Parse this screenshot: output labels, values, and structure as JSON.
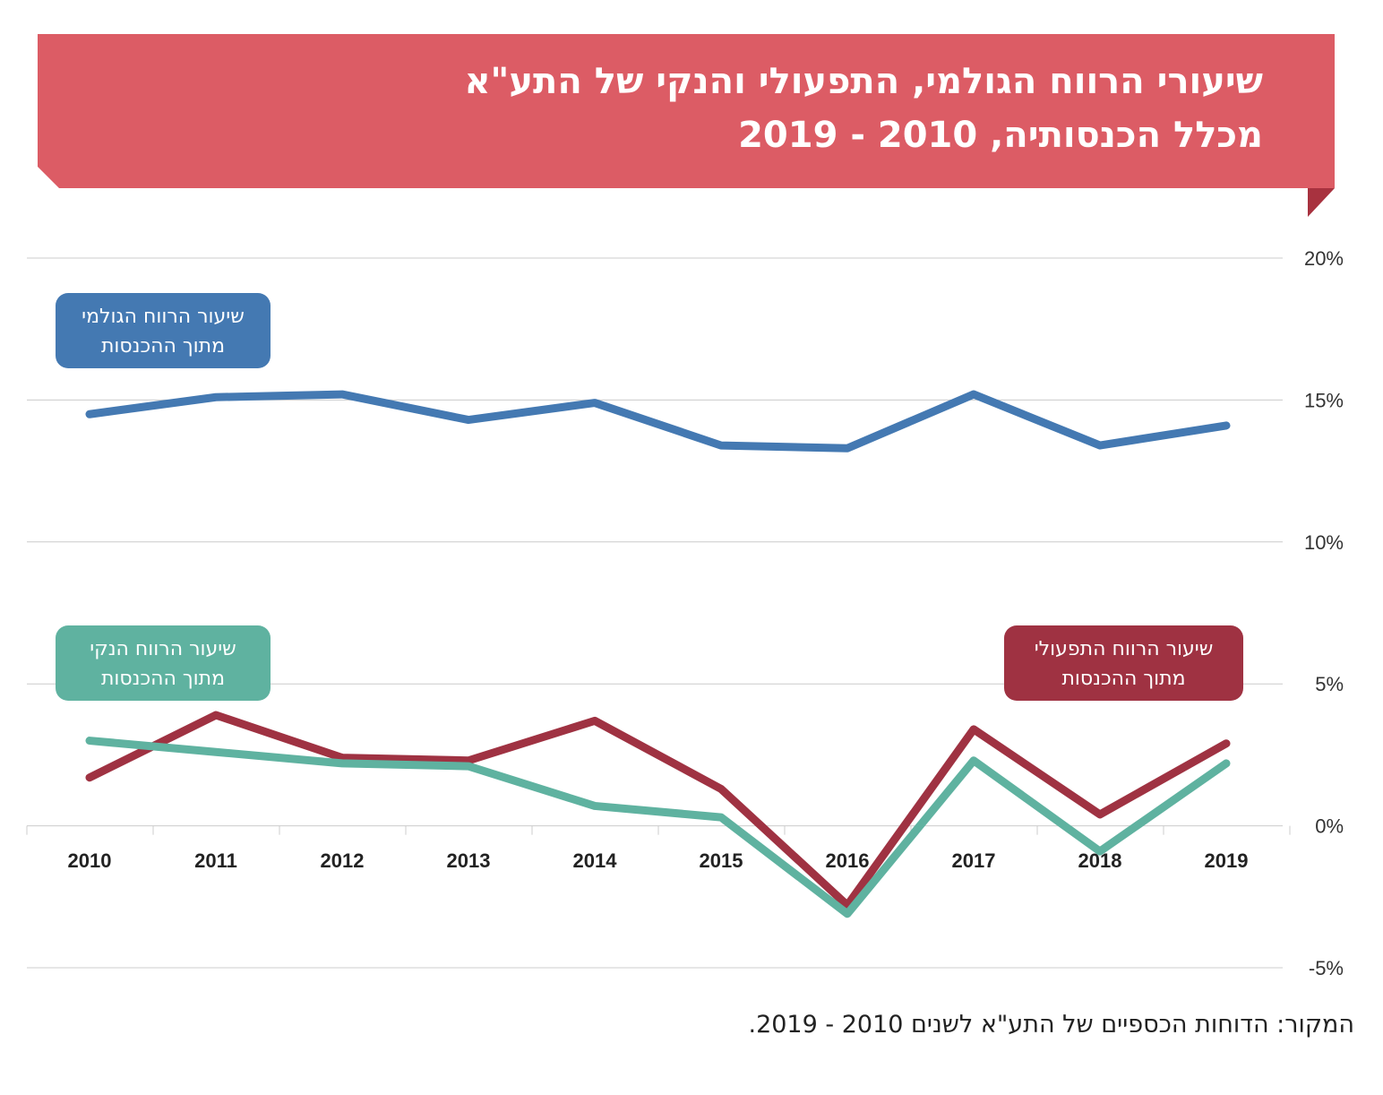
{
  "title": {
    "line1": "שיעורי הרווח הגולמי, התפעולי והנקי של התע\"א",
    "line2": "מכלל הכנסותיה, 2010 - 2019"
  },
  "source": "המקור: הדוחות הכספיים של התע\"א לשנים 2010 - 2019.",
  "colors": {
    "banner": "#dc5c65",
    "banner_fold": "#a8323f",
    "gross": "#4479b2",
    "operating": "#9f3242",
    "net": "#5fb2a0",
    "grid": "#cccccc"
  },
  "chart_data": {
    "type": "line",
    "x": [
      "2010",
      "2011",
      "2012",
      "2013",
      "2014",
      "2015",
      "2016",
      "2017",
      "2018",
      "2019"
    ],
    "y_ticks": [
      "20%",
      "15%",
      "10%",
      "5%",
      "0%",
      "-5%"
    ],
    "ylim": [
      -5,
      20
    ],
    "grid": true,
    "series": [
      {
        "key": "gross",
        "label_line1": "שיעור הרווח הגולמי",
        "label_line2": "מתוך ההכנסות",
        "values": [
          14.5,
          15.1,
          15.2,
          14.3,
          14.9,
          13.4,
          13.3,
          15.2,
          13.4,
          14.1
        ]
      },
      {
        "key": "operating",
        "label_line1": "שיעור הרווח התפעולי",
        "label_line2": "מתוך ההכנסות",
        "values": [
          1.7,
          3.9,
          2.4,
          2.3,
          3.7,
          1.3,
          -2.8,
          3.4,
          0.4,
          2.9
        ]
      },
      {
        "key": "net",
        "label_line1": "שיעור הרווח הנקי",
        "label_line2": "מתוך ההכנסות",
        "values": [
          3.0,
          2.6,
          2.2,
          2.1,
          0.7,
          0.3,
          -3.1,
          2.3,
          -0.9,
          2.2
        ]
      }
    ]
  }
}
